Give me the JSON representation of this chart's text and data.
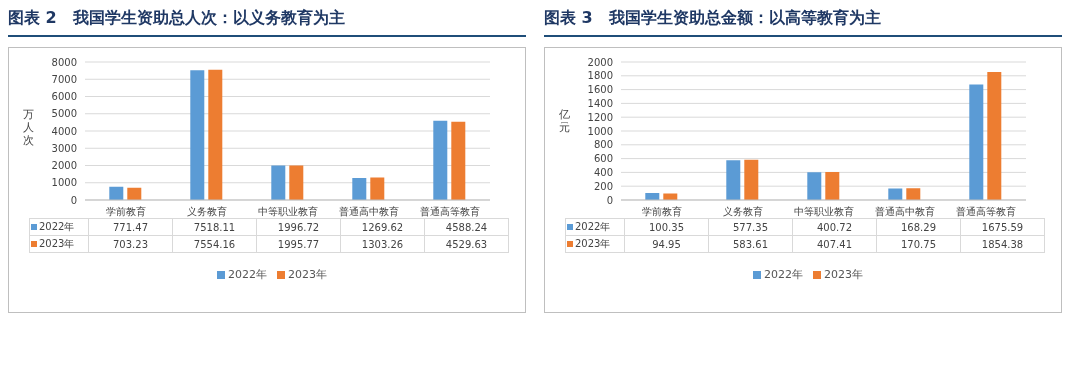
{
  "chart_data": [
    {
      "type": "bar",
      "title": "图表 2　我国学生资助总人次：以义务教育为主",
      "ylabel": "万人次",
      "categories": [
        "学前教育",
        "义务教育",
        "中等职业教育",
        "普通高中教育",
        "普通高等教育"
      ],
      "series": [
        {
          "name": "2022年",
          "color": "#5b9bd5",
          "values": [
            771.47,
            7518.11,
            1996.72,
            1269.62,
            4588.24
          ]
        },
        {
          "name": "2023年",
          "color": "#ed7d31",
          "values": [
            703.23,
            7554.16,
            1995.77,
            1303.26,
            4529.63
          ]
        }
      ],
      "ylim": [
        0,
        8000
      ],
      "yticks": [
        0,
        1000,
        2000,
        3000,
        4000,
        5000,
        6000,
        7000,
        8000
      ],
      "grid": "y",
      "legend": "bottom",
      "data_labels": true
    },
    {
      "type": "bar",
      "title": "图表 3　我国学生资助总金额：以高等教育为主",
      "ylabel": "亿元",
      "categories": [
        "学前教育",
        "义务教育",
        "中等职业教育",
        "普通高中教育",
        "普通高等教育"
      ],
      "series": [
        {
          "name": "2022年",
          "color": "#5b9bd5",
          "values": [
            100.35,
            577.35,
            400.72,
            168.29,
            1675.59
          ]
        },
        {
          "name": "2023年",
          "color": "#ed7d31",
          "values": [
            94.95,
            583.61,
            407.41,
            170.75,
            1854.38
          ]
        }
      ],
      "ylim": [
        0,
        2000
      ],
      "yticks": [
        0,
        200,
        400,
        600,
        800,
        1000,
        1200,
        1400,
        1600,
        1800,
        2000
      ],
      "grid": "y",
      "legend": "bottom",
      "data_labels": true
    }
  ]
}
